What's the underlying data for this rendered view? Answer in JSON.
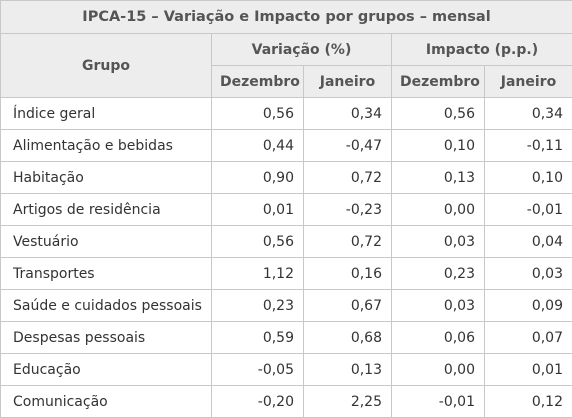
{
  "table": {
    "title": "IPCA-15 – Variação e Impacto por grupos – mensal",
    "headers": {
      "group": "Grupo",
      "variacao": "Variação (%)",
      "impacto": "Impacto (p.p.)",
      "variacao_dec": "Dezembro",
      "variacao_jan": "Janeiro",
      "impacto_dec": "Dezembro",
      "impacto_jan": "Janeiro"
    },
    "rows": [
      {
        "grupo": "Índice geral",
        "var_dez": "0,56",
        "var_jan": "0,34",
        "imp_dez": "0,56",
        "imp_jan": "0,34"
      },
      {
        "grupo": "Alimentação e bebidas",
        "var_dez": "0,44",
        "var_jan": "-0,47",
        "imp_dez": "0,10",
        "imp_jan": "-0,11"
      },
      {
        "grupo": "Habitação",
        "var_dez": "0,90",
        "var_jan": "0,72",
        "imp_dez": "0,13",
        "imp_jan": "0,10"
      },
      {
        "grupo": "Artigos de residência",
        "var_dez": "0,01",
        "var_jan": "-0,23",
        "imp_dez": "0,00",
        "imp_jan": "-0,01"
      },
      {
        "grupo": "Vestuário",
        "var_dez": "0,56",
        "var_jan": "0,72",
        "imp_dez": "0,03",
        "imp_jan": "0,04"
      },
      {
        "grupo": "Transportes",
        "var_dez": "1,12",
        "var_jan": "0,16",
        "imp_dez": "0,23",
        "imp_jan": "0,03"
      },
      {
        "grupo": "Saúde e cuidados pessoais",
        "var_dez": "0,23",
        "var_jan": "0,67",
        "imp_dez": "0,03",
        "imp_jan": "0,09"
      },
      {
        "grupo": "Despesas pessoais",
        "var_dez": "0,59",
        "var_jan": "0,68",
        "imp_dez": "0,06",
        "imp_jan": "0,07"
      },
      {
        "grupo": "Educação",
        "var_dez": "-0,05",
        "var_jan": "0,13",
        "imp_dez": "0,00",
        "imp_jan": "0,01"
      },
      {
        "grupo": "Comunicação",
        "var_dez": "-0,20",
        "var_jan": "2,25",
        "imp_dez": "-0,01",
        "imp_jan": "0,12"
      }
    ]
  }
}
